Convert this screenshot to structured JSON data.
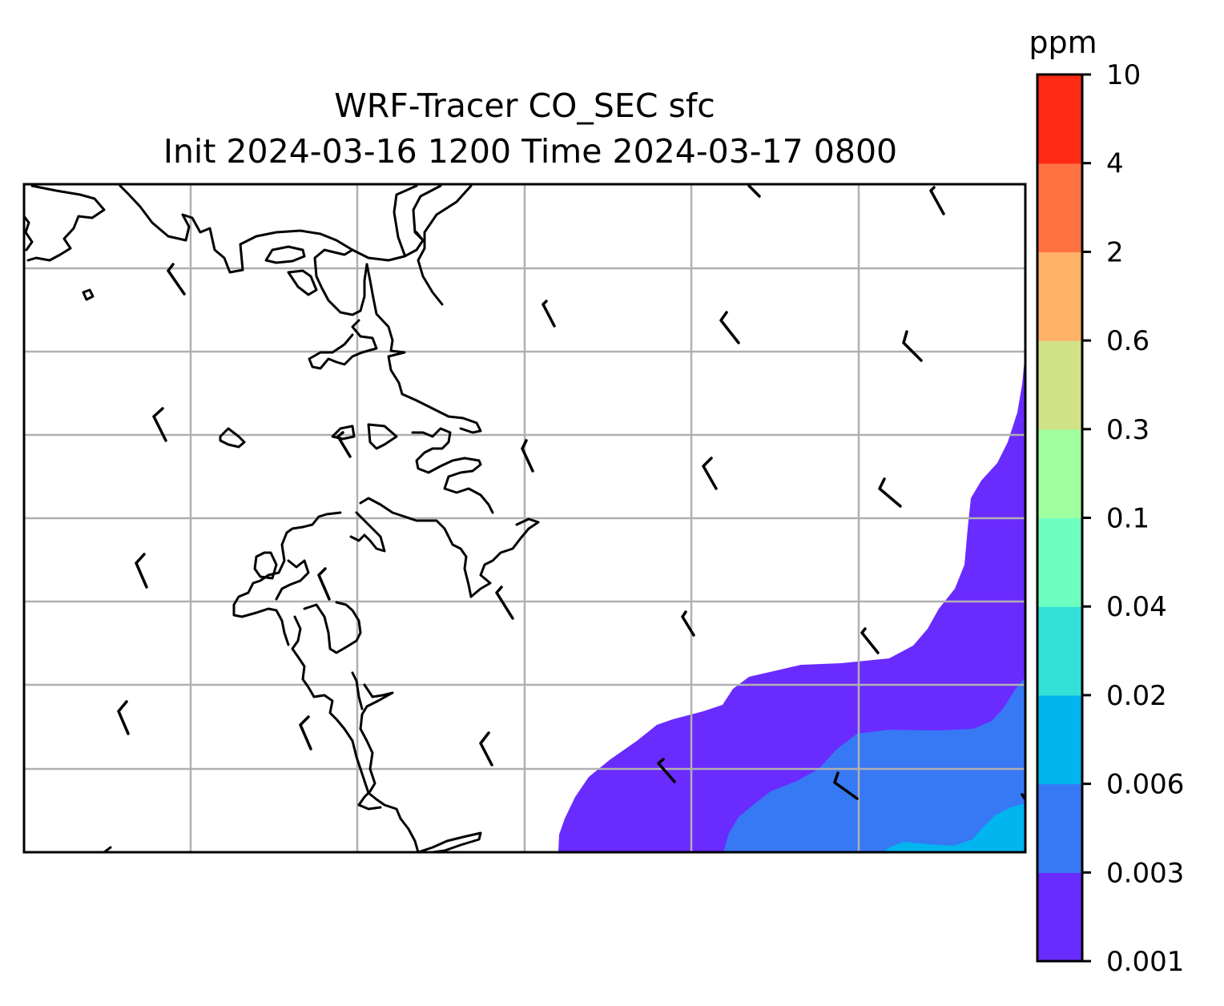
{
  "title": {
    "line1": "WRF-Tracer CO_SEC sfc",
    "line2": "Init 2024-03-16 1200 Time 2024-03-17 0800"
  },
  "colorbar": {
    "unit": "ppm",
    "levels": [
      "0.001",
      "0.003",
      "0.006",
      "0.02",
      "0.04",
      "0.1",
      "0.3",
      "0.6",
      "2",
      "4",
      "10"
    ],
    "colors": [
      "#6a2bff",
      "#3778f5",
      "#02b5ef",
      "#32e0d8",
      "#6cffc0",
      "#9fff9f",
      "#d2e286",
      "#feb167",
      "#ff7141",
      "#ff2a14"
    ]
  },
  "map": {
    "background": "#ffffff",
    "gridline_color": "#b0b0b0",
    "coastline_color": "#000000",
    "contours": [
      {
        "name": "tracer-contour-0.001",
        "level": "0.001",
        "color": "#6a2bff"
      },
      {
        "name": "tracer-contour-0.003",
        "level": "0.003",
        "color": "#3778f5"
      },
      {
        "name": "tracer-contour-0.006",
        "level": "0.006",
        "color": "#02b5ef"
      }
    ],
    "wind_barbs": "wind-barb-icon"
  }
}
